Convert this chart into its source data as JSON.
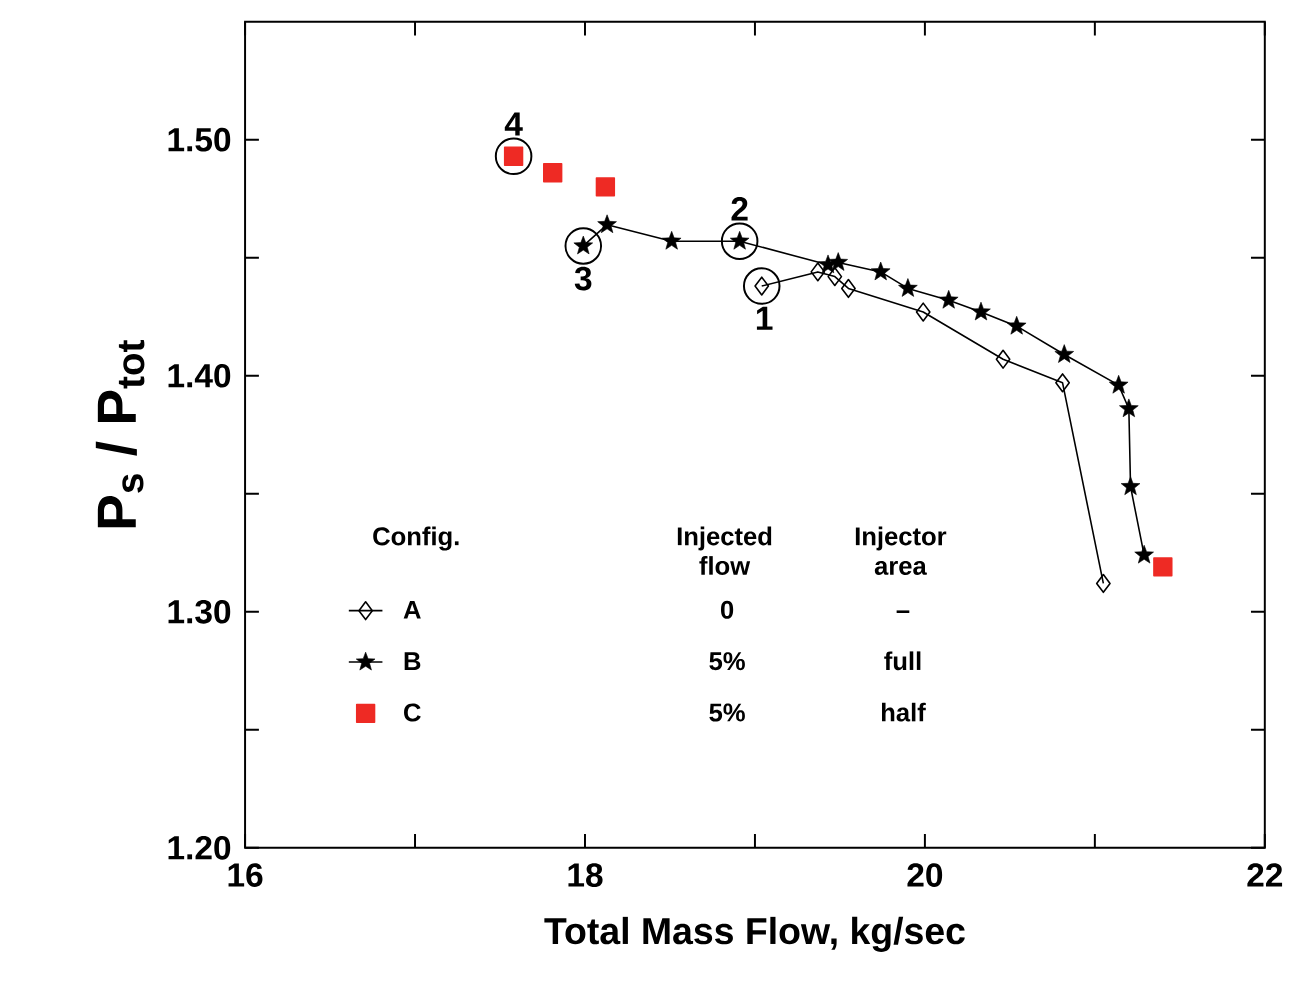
{
  "chart_data": {
    "type": "line",
    "xlabel": "Total Mass Flow, kg/sec",
    "ylabel": "P$_{s}$ / P$_{tot}$",
    "xlim": [
      16,
      22
    ],
    "ylim": [
      1.2,
      1.55
    ],
    "xticks": [
      16,
      {
        "value": 17,
        "label": null
      },
      18,
      {
        "value": 19,
        "label": null
      },
      20,
      {
        "value": 21,
        "label": null
      },
      22
    ],
    "yticks": [
      {
        "value": 1.2,
        "label": "1.20"
      },
      {
        "value": 1.25,
        "label": null
      },
      {
        "value": 1.3,
        "label": "1.30"
      },
      {
        "value": 1.35,
        "label": null
      },
      {
        "value": 1.4,
        "label": "1.40"
      },
      {
        "value": 1.45,
        "label": null
      },
      {
        "value": 1.5,
        "label": "1.50"
      }
    ],
    "legend": "bottom left",
    "legend_title": "Config.",
    "series": [
      {
        "name": "A",
        "marker": "diamond",
        "line_style": "solid",
        "color": "#000000",
        "x": [
          19.04,
          19.37,
          19.47,
          19.55,
          19.99,
          20.46,
          20.81,
          21.05
        ],
        "values": [
          1.438,
          1.444,
          1.442,
          1.437,
          1.427,
          1.407,
          1.397,
          1.312
        ]
      },
      {
        "name": "B",
        "marker": "star",
        "line_style": "solid",
        "color": "#000000",
        "x": [
          17.99,
          18.13,
          18.51,
          18.91,
          19.43,
          19.49,
          19.74,
          19.9,
          20.14,
          20.33,
          20.54,
          20.82,
          21.14,
          21.2,
          21.21,
          21.29
        ],
        "values": [
          1.455,
          1.464,
          1.457,
          1.457,
          1.447,
          1.448,
          1.444,
          1.437,
          1.432,
          1.427,
          1.421,
          1.409,
          1.396,
          1.386,
          1.353,
          1.324
        ]
      },
      {
        "name": "C",
        "type": "scatter",
        "marker": "square",
        "line_style": "none",
        "color": "#ee2a24",
        "x": [
          17.58,
          17.81,
          18.12,
          21.4
        ],
        "values": [
          1.493,
          1.486,
          1.48,
          1.319
        ]
      }
    ],
    "annotations": [
      "Injected flow",
      "Injector area",
      "0",
      "–",
      "5%",
      "full",
      "5%",
      "half",
      {
        "text": "1",
        "x": 19.04,
        "y": 1.438
      },
      {
        "text": "2",
        "x": 18.91,
        "y": 1.457
      },
      {
        "text": "3",
        "x": 17.99,
        "y": 1.455
      },
      {
        "text": "4",
        "x": 17.58,
        "y": 1.493
      }
    ]
  }
}
